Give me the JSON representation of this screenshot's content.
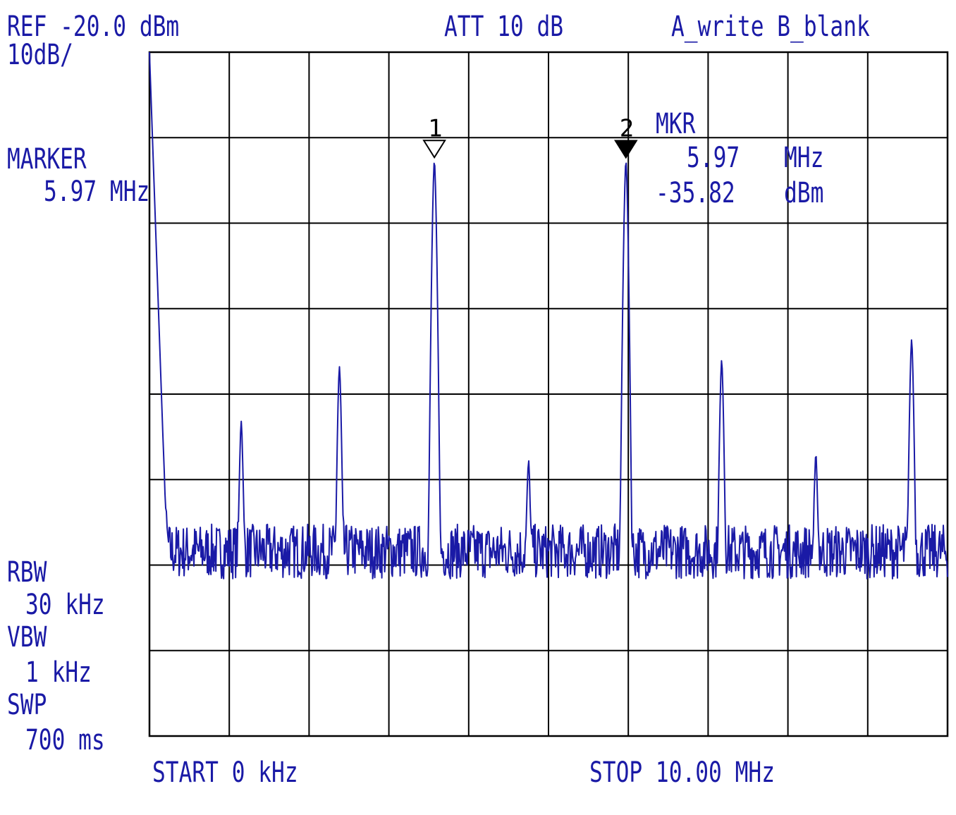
{
  "header": {
    "ref": "REF -20.0 dBm",
    "scale": "10dB/",
    "att": "ATT 10 dB",
    "trace_mode": "A_write B_blank"
  },
  "left_panel": {
    "marker_title": "MARKER",
    "marker_value": "5.97 MHz",
    "rbw_title": "RBW",
    "rbw_value": "30 kHz",
    "vbw_title": "VBW",
    "vbw_value": "1 kHz",
    "swp_title": "SWP",
    "swp_value": "700 ms"
  },
  "marker_readout": {
    "title": "MKR",
    "freq_value": "5.97",
    "freq_unit": "MHz",
    "level_value": "-35.82",
    "level_unit": "dBm"
  },
  "footer": {
    "start": "START 0 kHz",
    "stop": "STOP 10.00 MHz"
  },
  "colors": {
    "trace": "#1a1aa6",
    "grid": "#000000",
    "marker_open": "#ffffff",
    "marker_filled": "#000000"
  },
  "chart_data": {
    "type": "line",
    "xlabel": "",
    "ylabel": "",
    "x_unit": "MHz",
    "y_unit": "dBm",
    "xlim": [
      0,
      10
    ],
    "ylim": [
      -120,
      -20
    ],
    "grid": true,
    "x_divisions": 10,
    "y_divisions": 8,
    "noise_floor_dBm": -93,
    "series": [
      {
        "peaks": [
          {
            "x": 0.0,
            "y": -20
          },
          {
            "x": 1.15,
            "y": -74
          },
          {
            "x": 2.38,
            "y": -66
          },
          {
            "x": 3.57,
            "y": -35.8
          },
          {
            "x": 4.75,
            "y": -80
          },
          {
            "x": 5.97,
            "y": -35.82
          },
          {
            "x": 7.17,
            "y": -65
          },
          {
            "x": 8.35,
            "y": -79
          },
          {
            "x": 9.55,
            "y": -62
          }
        ]
      }
    ],
    "markers": [
      {
        "number": "1",
        "x": 3.57,
        "y": -35.8,
        "style": "open"
      },
      {
        "number": "2",
        "x": 5.97,
        "y": -35.82,
        "style": "filled"
      }
    ]
  }
}
